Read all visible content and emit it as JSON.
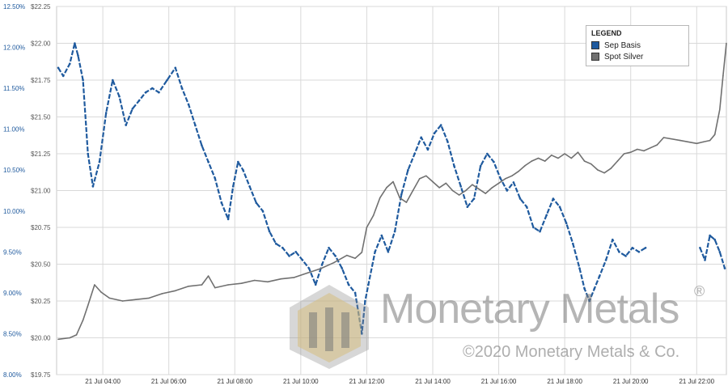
{
  "chart_data": {
    "type": "line",
    "title": "",
    "legend": {
      "title": "LEGEND",
      "placement": "top-right"
    },
    "grid": true,
    "y_left": {
      "label": "",
      "range": [
        8.0,
        12.5
      ],
      "ticks": [
        "8.00%",
        "8.50%",
        "9.00%",
        "9.50%",
        "10.00%",
        "10.50%",
        "11.00%",
        "11.50%",
        "12.00%",
        "12.50%"
      ]
    },
    "y_right": {
      "label": "",
      "range": [
        19.75,
        22.25
      ],
      "ticks": [
        "$19.75",
        "$20.00",
        "$20.25",
        "$20.50",
        "$20.75",
        "$21.00",
        "$21.25",
        "$21.50",
        "$21.75",
        "$22.00",
        "$22.25"
      ]
    },
    "x": {
      "range_hours": [
        2.6,
        22.9
      ],
      "ticks": [
        "21 Jul 04:00",
        "21 Jul 06:00",
        "21 Jul 08:00",
        "21 Jul 10:00",
        "21 Jul 12:00",
        "21 Jul 14:00",
        "21 Jul 16:00",
        "21 Jul 18:00",
        "21 Jul 20:00",
        "21 Jul 22:00"
      ]
    },
    "series": [
      {
        "name": "Sep Basis",
        "axis": "left",
        "color": "#1f5a9e",
        "points": [
          [
            2.65,
            11.75
          ],
          [
            2.8,
            11.65
          ],
          [
            3.0,
            11.8
          ],
          [
            3.15,
            12.05
          ],
          [
            3.25,
            11.9
          ],
          [
            3.4,
            11.6
          ],
          [
            3.55,
            10.7
          ],
          [
            3.7,
            10.3
          ],
          [
            3.9,
            10.6
          ],
          [
            4.1,
            11.2
          ],
          [
            4.3,
            11.6
          ],
          [
            4.5,
            11.4
          ],
          [
            4.7,
            11.05
          ],
          [
            4.9,
            11.25
          ],
          [
            5.1,
            11.35
          ],
          [
            5.3,
            11.45
          ],
          [
            5.5,
            11.5
          ],
          [
            5.7,
            11.45
          ],
          [
            5.95,
            11.6
          ],
          [
            6.2,
            11.75
          ],
          [
            6.4,
            11.5
          ],
          [
            6.6,
            11.3
          ],
          [
            6.8,
            11.05
          ],
          [
            7.0,
            10.8
          ],
          [
            7.2,
            10.6
          ],
          [
            7.4,
            10.4
          ],
          [
            7.6,
            10.1
          ],
          [
            7.8,
            9.9
          ],
          [
            7.95,
            10.3
          ],
          [
            8.1,
            10.6
          ],
          [
            8.25,
            10.5
          ],
          [
            8.45,
            10.3
          ],
          [
            8.65,
            10.1
          ],
          [
            8.85,
            10.0
          ],
          [
            9.05,
            9.75
          ],
          [
            9.25,
            9.6
          ],
          [
            9.45,
            9.55
          ],
          [
            9.65,
            9.45
          ],
          [
            9.85,
            9.5
          ],
          [
            10.05,
            9.4
          ],
          [
            10.25,
            9.3
          ],
          [
            10.45,
            9.1
          ],
          [
            10.65,
            9.35
          ],
          [
            10.85,
            9.55
          ],
          [
            11.05,
            9.45
          ],
          [
            11.25,
            9.3
          ],
          [
            11.45,
            9.1
          ],
          [
            11.65,
            9.0
          ],
          [
            11.85,
            8.5
          ],
          [
            11.95,
            8.9
          ],
          [
            12.05,
            9.1
          ],
          [
            12.25,
            9.5
          ],
          [
            12.45,
            9.7
          ],
          [
            12.65,
            9.5
          ],
          [
            12.85,
            9.75
          ],
          [
            13.05,
            10.2
          ],
          [
            13.25,
            10.5
          ],
          [
            13.45,
            10.7
          ],
          [
            13.65,
            10.9
          ],
          [
            13.85,
            10.75
          ],
          [
            14.05,
            10.95
          ],
          [
            14.25,
            11.05
          ],
          [
            14.45,
            10.85
          ],
          [
            14.65,
            10.55
          ],
          [
            14.85,
            10.3
          ],
          [
            15.05,
            10.05
          ],
          [
            15.25,
            10.15
          ],
          [
            15.45,
            10.55
          ],
          [
            15.65,
            10.7
          ],
          [
            15.85,
            10.6
          ],
          [
            16.05,
            10.4
          ],
          [
            16.25,
            10.25
          ],
          [
            16.45,
            10.35
          ],
          [
            16.65,
            10.15
          ],
          [
            16.85,
            10.05
          ],
          [
            17.05,
            9.8
          ],
          [
            17.25,
            9.75
          ],
          [
            17.45,
            9.95
          ],
          [
            17.65,
            10.15
          ],
          [
            17.85,
            10.05
          ],
          [
            18.05,
            9.85
          ],
          [
            18.25,
            9.6
          ],
          [
            18.45,
            9.3
          ],
          [
            18.6,
            9.05
          ],
          [
            18.75,
            8.9
          ],
          [
            18.9,
            9.05
          ],
          [
            19.05,
            9.2
          ],
          [
            19.25,
            9.4
          ],
          [
            19.45,
            9.65
          ],
          [
            19.65,
            9.5
          ],
          [
            19.85,
            9.45
          ],
          [
            20.05,
            9.55
          ],
          [
            20.25,
            9.5
          ],
          [
            20.45,
            9.55
          ],
          null,
          [
            22.1,
            9.55
          ],
          [
            22.25,
            9.4
          ],
          [
            22.4,
            9.7
          ],
          [
            22.55,
            9.65
          ],
          [
            22.7,
            9.5
          ],
          [
            22.85,
            9.3
          ]
        ]
      },
      {
        "name": "Spot Silver",
        "axis": "right",
        "color": "#707070",
        "points": [
          [
            2.65,
            19.99
          ],
          [
            3.0,
            20.0
          ],
          [
            3.2,
            20.02
          ],
          [
            3.4,
            20.12
          ],
          [
            3.55,
            20.22
          ],
          [
            3.75,
            20.36
          ],
          [
            3.95,
            20.31
          ],
          [
            4.2,
            20.27
          ],
          [
            4.6,
            20.25
          ],
          [
            5.0,
            20.26
          ],
          [
            5.4,
            20.27
          ],
          [
            5.8,
            20.3
          ],
          [
            6.2,
            20.32
          ],
          [
            6.6,
            20.35
          ],
          [
            7.0,
            20.36
          ],
          [
            7.2,
            20.42
          ],
          [
            7.4,
            20.34
          ],
          [
            7.8,
            20.36
          ],
          [
            8.2,
            20.37
          ],
          [
            8.6,
            20.39
          ],
          [
            9.0,
            20.38
          ],
          [
            9.4,
            20.4
          ],
          [
            9.8,
            20.41
          ],
          [
            10.2,
            20.44
          ],
          [
            10.6,
            20.47
          ],
          [
            11.0,
            20.51
          ],
          [
            11.4,
            20.56
          ],
          [
            11.65,
            20.54
          ],
          [
            11.85,
            20.58
          ],
          [
            12.0,
            20.75
          ],
          [
            12.2,
            20.83
          ],
          [
            12.4,
            20.95
          ],
          [
            12.6,
            21.02
          ],
          [
            12.8,
            21.06
          ],
          [
            13.0,
            20.95
          ],
          [
            13.2,
            20.92
          ],
          [
            13.4,
            21.0
          ],
          [
            13.6,
            21.08
          ],
          [
            13.8,
            21.1
          ],
          [
            14.0,
            21.06
          ],
          [
            14.2,
            21.02
          ],
          [
            14.4,
            21.05
          ],
          [
            14.6,
            21.0
          ],
          [
            14.8,
            20.97
          ],
          [
            15.0,
            21.0
          ],
          [
            15.2,
            21.04
          ],
          [
            15.4,
            21.01
          ],
          [
            15.6,
            20.98
          ],
          [
            15.8,
            21.02
          ],
          [
            16.0,
            21.05
          ],
          [
            16.2,
            21.08
          ],
          [
            16.4,
            21.1
          ],
          [
            16.6,
            21.13
          ],
          [
            16.8,
            21.17
          ],
          [
            17.0,
            21.2
          ],
          [
            17.2,
            21.22
          ],
          [
            17.4,
            21.2
          ],
          [
            17.6,
            21.24
          ],
          [
            17.8,
            21.22
          ],
          [
            18.0,
            21.25
          ],
          [
            18.2,
            21.22
          ],
          [
            18.4,
            21.26
          ],
          [
            18.6,
            21.2
          ],
          [
            18.8,
            21.18
          ],
          [
            19.0,
            21.14
          ],
          [
            19.2,
            21.12
          ],
          [
            19.4,
            21.15
          ],
          [
            19.6,
            21.2
          ],
          [
            19.8,
            21.25
          ],
          [
            20.0,
            21.26
          ],
          [
            20.2,
            21.28
          ],
          [
            20.4,
            21.27
          ],
          [
            20.6,
            21.29
          ],
          [
            20.8,
            21.31
          ],
          [
            21.0,
            21.36
          ],
          [
            21.5,
            21.34
          ],
          [
            22.0,
            21.32
          ],
          [
            22.2,
            21.33
          ],
          [
            22.4,
            21.34
          ],
          [
            22.55,
            21.38
          ],
          [
            22.7,
            21.55
          ],
          [
            22.8,
            21.78
          ],
          [
            22.9,
            22.0
          ]
        ]
      }
    ]
  },
  "watermark": {
    "brand": "Monetary Metals",
    "copyright": "©2020 Monetary Metals & Co.",
    "registered": "®"
  }
}
